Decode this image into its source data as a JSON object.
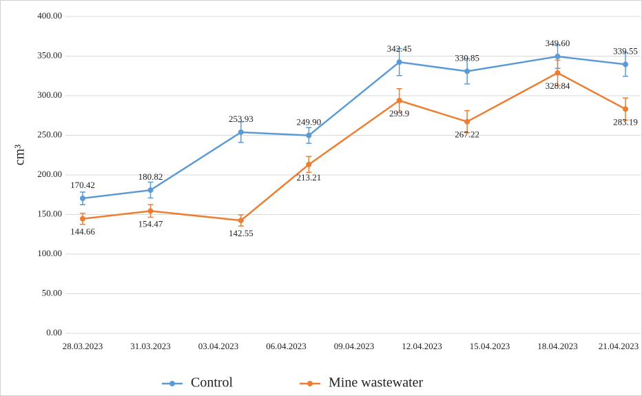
{
  "chart_data": {
    "type": "line",
    "y_label": "cm³",
    "x": [
      "2023-03-28",
      "2023-03-31",
      "2023-04-04",
      "2023-04-07",
      "2023-04-11",
      "2023-04-14",
      "2023-04-18",
      "2023-04-21"
    ],
    "xlim": [
      "2023-03-28",
      "2023-04-21"
    ],
    "xticks": [
      {
        "value": "2023-03-28",
        "label": "28.03.2023"
      },
      {
        "value": "2023-03-31",
        "label": "31.03.2023"
      },
      {
        "value": "2023-04-03",
        "label": "03.04.2023"
      },
      {
        "value": "2023-04-06",
        "label": "06.04.2023"
      },
      {
        "value": "2023-04-09",
        "label": "09.04.2023"
      },
      {
        "value": "2023-04-12",
        "label": "12.04.2023"
      },
      {
        "value": "2023-04-15",
        "label": "15.04.2023"
      },
      {
        "value": "2023-04-18",
        "label": "18.04.2023"
      },
      {
        "value": "2023-04-21",
        "label": "21.04.2023"
      }
    ],
    "ylim": [
      0,
      400
    ],
    "yticks": [
      {
        "value": 0,
        "label": "0.00"
      },
      {
        "value": 50,
        "label": "50.00"
      },
      {
        "value": 100,
        "label": "100.00"
      },
      {
        "value": 150,
        "label": "150.00"
      },
      {
        "value": 200,
        "label": "200.00"
      },
      {
        "value": 250,
        "label": "250.00"
      },
      {
        "value": 300,
        "label": "300.00"
      },
      {
        "value": 350,
        "label": "350.00"
      },
      {
        "value": 400,
        "label": "400.00"
      }
    ],
    "grid": true,
    "legend": "bottom",
    "series": [
      {
        "name": "Control",
        "color": "#5b9bd5",
        "values": [
          170.42,
          180.82,
          253.93,
          249.9,
          342.45,
          330.85,
          349.6,
          339.55
        ],
        "value_labels": [
          "170.42",
          "180.82",
          "253.93",
          "249.90",
          "342.45",
          "330.85",
          "349.60",
          "339.55"
        ],
        "errors": [
          8,
          10,
          13,
          10,
          17,
          16,
          15,
          15
        ]
      },
      {
        "name": "Mine wastewater",
        "color": "#ed7d31",
        "values": [
          144.66,
          154.47,
          142.55,
          213.21,
          293.9,
          267.22,
          328.84,
          283.19
        ],
        "errors": [
          7,
          8,
          7,
          10,
          15,
          14,
          16,
          14
        ]
      }
    ]
  }
}
